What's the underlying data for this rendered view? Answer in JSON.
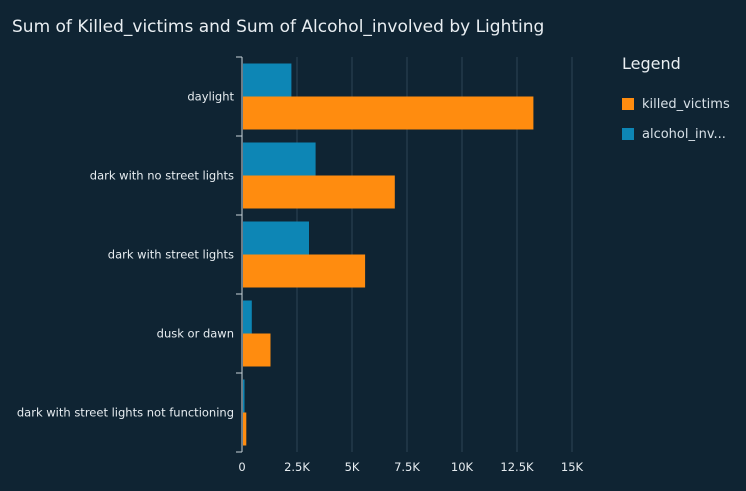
{
  "colors": {
    "background": "#0f2433",
    "grid": "#2e4556",
    "axis": "#c9d3da",
    "killed_victims": "#ff8c0f",
    "alcohol_involved": "#0d86b5"
  },
  "chart_data": {
    "type": "bar",
    "orientation": "horizontal",
    "title": "Sum of Killed_victims and Sum of Alcohol_involved by Lighting",
    "categories": [
      "daylight",
      "dark with no street lights",
      "dark with street lights",
      "dusk or dawn",
      "dark with street lights not functioning"
    ],
    "series": [
      {
        "name": "alcohol_involved",
        "legend_label": "alcohol_inv...",
        "color_key": "alcohol_involved",
        "values": [
          2200,
          3300,
          3000,
          400,
          50
        ]
      },
      {
        "name": "killed_victims",
        "legend_label": "killed_victims",
        "color_key": "killed_victims",
        "values": [
          13200,
          6900,
          5550,
          1250,
          150
        ]
      }
    ],
    "xlim": [
      0,
      15000
    ],
    "xticks": [
      0,
      2500,
      5000,
      7500,
      10000,
      12500,
      15000
    ],
    "xtick_labels": [
      "0",
      "2.5K",
      "5K",
      "7.5K",
      "10K",
      "12.5K",
      "15K"
    ],
    "grid": true,
    "legend": {
      "title": "Legend",
      "placement": "right",
      "order": [
        "killed_victims",
        "alcohol_involved"
      ]
    }
  }
}
